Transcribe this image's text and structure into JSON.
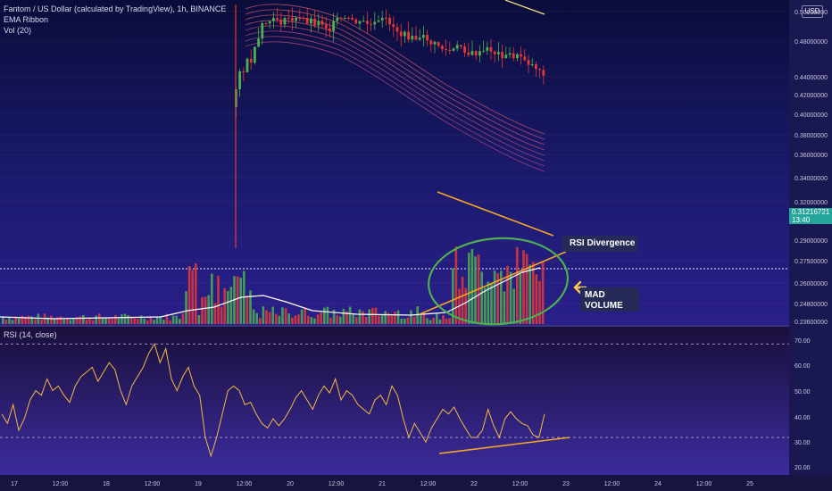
{
  "legend": {
    "title": "Fantom / US Dollar (calculated by TradingView), 1h, BINANCE",
    "ema": "EMA Ribbon",
    "vol": "Vol (20)"
  },
  "rsi_legend": "RSI (14, close)",
  "currency_badge": "USD",
  "current_price": {
    "value": "0.31216721",
    "countdown": "13:40",
    "color": "#26a69a"
  },
  "annotations": {
    "rsi_divergence": "RSI Divergence",
    "mad_volume_line1": "MAD",
    "mad_volume_line2": "VOLUME",
    "arrow_color": "#f7c948",
    "circle_color": "#4caf50",
    "trend_color": "#f5a623"
  },
  "colors": {
    "background": "#1c1548",
    "up": "#4caf50",
    "down": "#e53935",
    "rsi_line": "#f5b942",
    "volume_ma": "#ffffff"
  },
  "chart_data": [
    {
      "type": "candlestick",
      "title": "Fantom / US Dollar (calculated by TradingView), 1h, BINANCE",
      "y_ticks": [
        "0.50000000",
        "0.48000000",
        "0.44000000",
        "0.42000000",
        "0.40000000",
        "0.38000000",
        "0.36000000",
        "0.34000000",
        "0.32000000",
        "0.29000000",
        "0.27500000",
        "0.26000000",
        "0.24800000",
        "0.23600000"
      ],
      "x_ticks": [
        "17",
        "12:00",
        "18",
        "12:00",
        "19",
        "12:00",
        "20",
        "12:00",
        "21",
        "12:00",
        "22",
        "12:00",
        "23",
        "12:00",
        "24",
        "12:00",
        "25"
      ],
      "series": [
        "EMA Ribbon",
        "Vol (20)"
      ]
    },
    {
      "type": "line",
      "title": "RSI (14, close)",
      "y_ticks": [
        "70.00",
        "60.00",
        "50.00",
        "40.00",
        "30.00",
        "20.00"
      ],
      "ylim": [
        17,
        72
      ],
      "bands": [
        70,
        30
      ],
      "values": [
        40,
        36,
        44,
        33,
        38,
        46,
        50,
        48,
        55,
        50,
        52,
        48,
        45,
        52,
        56,
        58,
        60,
        54,
        58,
        62,
        59,
        50,
        44,
        52,
        56,
        60,
        66,
        70,
        62,
        68,
        55,
        50,
        56,
        60,
        52,
        48,
        30,
        22,
        30,
        40,
        50,
        52,
        50,
        44,
        45,
        40,
        36,
        34,
        38,
        35,
        38,
        42,
        47,
        50,
        46,
        42,
        48,
        52,
        49,
        55,
        46,
        50,
        48,
        44,
        42,
        40,
        46,
        48,
        44,
        52,
        48,
        38,
        30,
        36,
        32,
        28,
        34,
        38,
        42,
        40,
        43,
        38,
        34,
        30,
        30,
        33,
        42,
        35,
        30,
        38,
        41,
        38,
        36,
        35,
        31,
        30,
        40
      ]
    }
  ]
}
